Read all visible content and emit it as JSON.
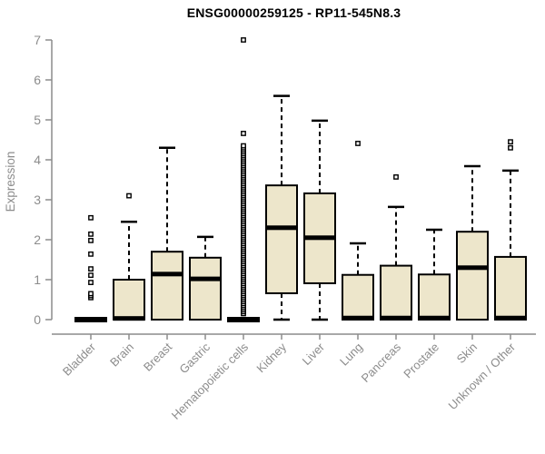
{
  "chart_data": {
    "type": "boxplot",
    "title": "ENSG00000259125 - RP11-545N8.3",
    "ylabel": "Expression",
    "xlabel": "",
    "ylim": [
      0,
      7
    ],
    "yticks": [
      0,
      1,
      2,
      3,
      4,
      5,
      6,
      7
    ],
    "grid": false,
    "legend": "none",
    "colors": {
      "box_fill": "#ede6cb",
      "box_stroke": "#000000",
      "median": "#000000",
      "whisker": "#000000",
      "outlier_fill": "#ffffff",
      "axis": "#8c8c8c",
      "tick_label": "#8c8c8c",
      "title": "#000000"
    },
    "categories": [
      "Bladder",
      "Brain",
      "Breast",
      "Gastric",
      "Hematopoietic cells",
      "Kidney",
      "Liver",
      "Lung",
      "Pancreas",
      "Prostate",
      "Skin",
      "Unknown / Other"
    ],
    "series": [
      {
        "label": "Bladder",
        "min": 0,
        "q1": 0,
        "median": 0,
        "q3": 0,
        "max": 0,
        "outliers": [
          0.55,
          0.6,
          0.65,
          0.93,
          1.11,
          1.27,
          1.64,
          1.98,
          2.14,
          2.55
        ]
      },
      {
        "label": "Brain",
        "min": 0,
        "q1": 0,
        "median": 0.03,
        "q3": 1.0,
        "max": 2.45,
        "outliers": [
          3.1
        ]
      },
      {
        "label": "Breast",
        "min": 0,
        "q1": 0,
        "median": 1.14,
        "q3": 1.7,
        "max": 4.3,
        "outliers": []
      },
      {
        "label": "Gastric",
        "min": 0,
        "q1": 0,
        "median": 1.02,
        "q3": 1.55,
        "max": 2.07,
        "outliers": []
      },
      {
        "label": "Hematopoietic cells",
        "min": 0,
        "q1": 0,
        "median": 0,
        "q3": 0,
        "max": 0,
        "outliers": [
          4.66,
          7.0
        ],
        "outlier_band": {
          "min": 0.15,
          "max": 4.36,
          "step": 0.05
        }
      },
      {
        "label": "Kidney",
        "min": 0,
        "q1": 0.66,
        "median": 2.3,
        "q3": 3.36,
        "max": 5.6,
        "outliers": []
      },
      {
        "label": "Liver",
        "min": 0,
        "q1": 0.91,
        "median": 2.05,
        "q3": 3.16,
        "max": 4.98,
        "outliers": []
      },
      {
        "label": "Lung",
        "min": 0,
        "q1": 0,
        "median": 0.04,
        "q3": 1.12,
        "max": 1.91,
        "outliers": [
          4.41
        ]
      },
      {
        "label": "Pancreas",
        "min": 0,
        "q1": 0,
        "median": 0.04,
        "q3": 1.35,
        "max": 2.82,
        "outliers": [
          3.57
        ]
      },
      {
        "label": "Prostate",
        "min": 0,
        "q1": 0,
        "median": 0.04,
        "q3": 1.13,
        "max": 2.25,
        "outliers": []
      },
      {
        "label": "Skin",
        "min": 0,
        "q1": 0,
        "median": 1.3,
        "q3": 2.2,
        "max": 3.84,
        "outliers": []
      },
      {
        "label": "Unknown / Other",
        "min": 0,
        "q1": 0,
        "median": 0.04,
        "q3": 1.57,
        "max": 3.73,
        "outliers": [
          4.3,
          4.45
        ]
      }
    ]
  }
}
